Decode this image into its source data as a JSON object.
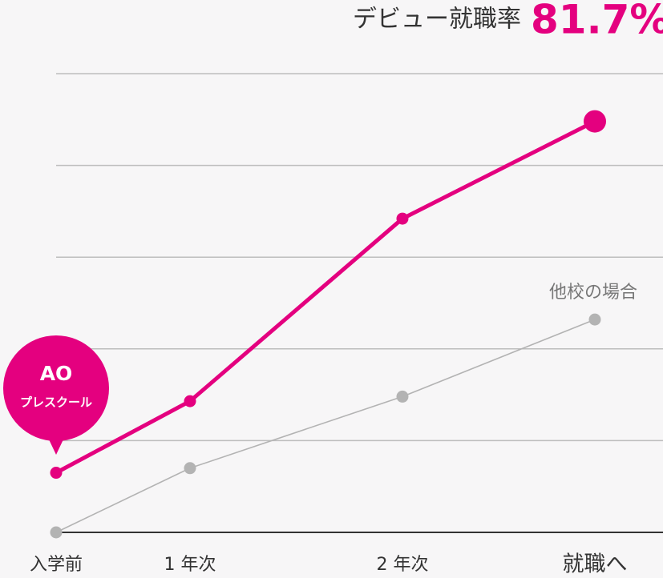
{
  "chart_data": {
    "type": "line",
    "title": "デビュー就職率",
    "headline_value": 81.7,
    "headline_label": "81.7%",
    "headline_color": "#e4007f",
    "categories": [
      "入学前",
      "1 年次",
      "2 年次",
      "就職へ"
    ],
    "series": [
      {
        "name": [
          "AO",
          "プレスクール"
        ],
        "color": "#e4007f",
        "values": [
          0.65,
          1.43,
          3.42,
          4.48
        ]
      },
      {
        "name": "他校の場合",
        "color": "#b3b3b3",
        "values": [
          0,
          0.7,
          1.48,
          2.32
        ]
      }
    ],
    "ylim": [
      0,
      5
    ],
    "yticks": [
      0,
      1,
      2,
      3,
      4,
      5
    ],
    "grid": true
  }
}
